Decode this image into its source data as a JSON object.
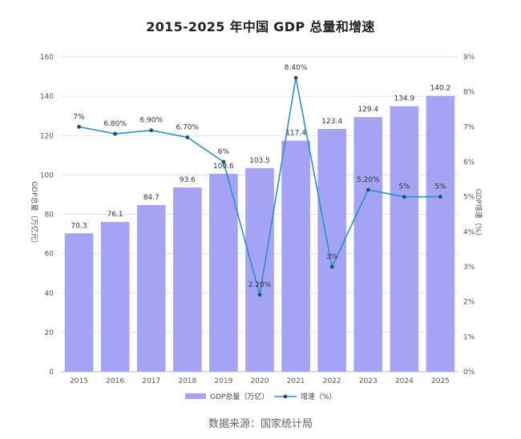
{
  "chart_data": {
    "type": "bar",
    "title": "2015-2025 年中国 GDP 总量和增速",
    "categories": [
      "2015",
      "2016",
      "2017",
      "2018",
      "2019",
      "2020",
      "2021",
      "2022",
      "2023",
      "2024",
      "2025"
    ],
    "series": [
      {
        "name": "GDP总量（万亿）",
        "type": "bar",
        "axis": "left",
        "color": "#a4a3f4",
        "values": [
          70.3,
          76.1,
          84.7,
          93.6,
          100.6,
          103.5,
          117.4,
          123.4,
          129.4,
          134.9,
          140.2
        ]
      },
      {
        "name": "增速（%）",
        "type": "line",
        "axis": "right",
        "color": "#2e8fc9",
        "marker_color": "#1d4f7a",
        "values": [
          7,
          6.8,
          6.9,
          6.7,
          6,
          2.2,
          8.4,
          3,
          5.2,
          5,
          5
        ],
        "labels": [
          "7%",
          "6.80%",
          "6.90%",
          "6.70%",
          "6%",
          "2.20%",
          "8.40%",
          "3%",
          "5.20%",
          "5%",
          "5%"
        ]
      }
    ],
    "ylabel": "GDP总量（万亿元）",
    "y2label": "GDP增速（%）",
    "ylim": [
      0,
      160
    ],
    "yticks": [
      "0",
      "20",
      "40",
      "60",
      "80",
      "100",
      "120",
      "140",
      "160"
    ],
    "y2lim": [
      0,
      9
    ],
    "y2ticks": [
      "0%",
      "1%",
      "2%",
      "3%",
      "4%",
      "5%",
      "6%",
      "7%",
      "8%",
      "9%"
    ],
    "grid": true,
    "legend_position": "bottom",
    "source": "数据来源：国家统计局"
  }
}
